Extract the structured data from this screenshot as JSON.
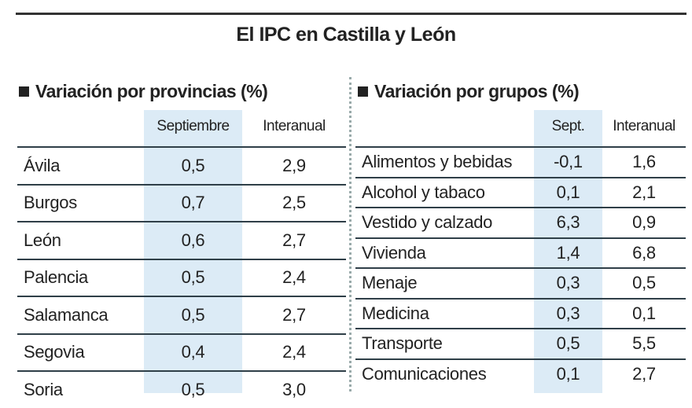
{
  "title": "El IPC en Castilla y León",
  "provincias": {
    "heading": "Variación por provincias (%)",
    "columns": [
      "Septiembre",
      "Interanual"
    ],
    "rows": [
      {
        "name": "Ávila",
        "sep": "0,5",
        "inter": "2,9"
      },
      {
        "name": "Burgos",
        "sep": "0,7",
        "inter": "2,5"
      },
      {
        "name": "León",
        "sep": "0,6",
        "inter": "2,7"
      },
      {
        "name": "Palencia",
        "sep": "0,5",
        "inter": "2,4"
      },
      {
        "name": "Salamanca",
        "sep": "0,5",
        "inter": "2,7"
      },
      {
        "name": "Segovia",
        "sep": "0,4",
        "inter": "2,4"
      },
      {
        "name": "Soria",
        "sep": "0,5",
        "inter": "3,0"
      }
    ]
  },
  "grupos": {
    "heading": "Variación por grupos (%)",
    "columns": [
      "Sept.",
      "Interanual"
    ],
    "rows": [
      {
        "name": "Alimentos y bebidas",
        "sep": "-0,1",
        "inter": "1,6"
      },
      {
        "name": "Alcohol y tabaco",
        "sep": "0,1",
        "inter": "2,1"
      },
      {
        "name": "Vestido y calzado",
        "sep": "6,3",
        "inter": "0,9"
      },
      {
        "name": "Vivienda",
        "sep": "1,4",
        "inter": "6,8"
      },
      {
        "name": "Menaje",
        "sep": "0,3",
        "inter": "0,5"
      },
      {
        "name": "Medicina",
        "sep": "0,3",
        "inter": "0,1"
      },
      {
        "name": "Transporte",
        "sep": "0,5",
        "inter": "5,5"
      },
      {
        "name": "Comunicaciones",
        "sep": "0,1",
        "inter": "2,7"
      }
    ]
  }
}
